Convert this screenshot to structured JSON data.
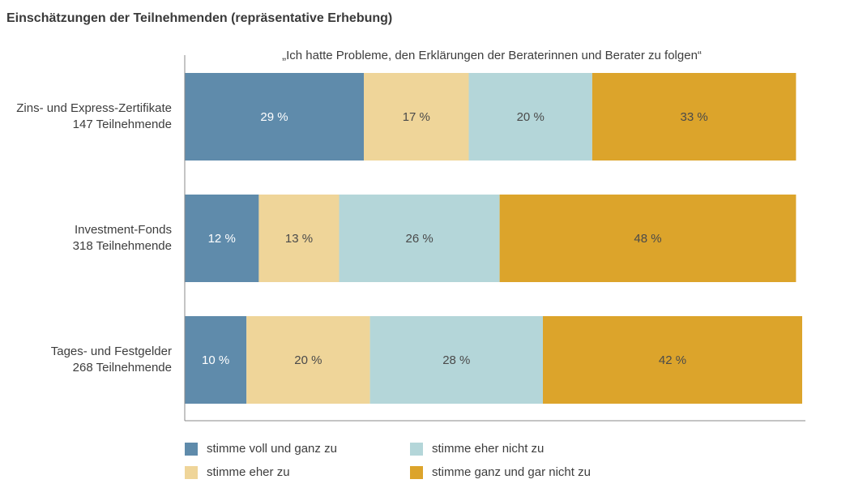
{
  "title": "Einschätzungen der Teilnehmenden (repräsentative Erhebung)",
  "chart_data": {
    "type": "bar",
    "orientation": "horizontal",
    "stacked": true,
    "subtitle": "„Ich hatte Probleme, den Erklärungen der Beraterinnen und Berater zu folgen“",
    "categories": [
      {
        "line1": "Zins- und Express-Zertifikate",
        "line2": "147 Teilnehmende"
      },
      {
        "line1": "Investment-Fonds",
        "line2": "318 Teilnehmende"
      },
      {
        "line1": "Tages- und Festgelder",
        "line2": "268 Teilnehmende"
      }
    ],
    "series": [
      {
        "name": "stimme voll und ganz zu",
        "color": "#5f8bab",
        "label_color": "#ffffff",
        "values": [
          29,
          12,
          10
        ],
        "labels": [
          "29 %",
          "12 %",
          "10 %"
        ]
      },
      {
        "name": "stimme eher zu",
        "color": "#efd599",
        "label_color": "#4a4a4a",
        "values": [
          17,
          13,
          20
        ],
        "labels": [
          "17 %",
          "13 %",
          "20 %"
        ]
      },
      {
        "name": "stimme eher nicht zu",
        "color": "#b4d6d9",
        "label_color": "#4a4a4a",
        "values": [
          20,
          26,
          28
        ],
        "labels": [
          "20 %",
          "26 %",
          "28 %"
        ]
      },
      {
        "name": "stimme ganz und gar nicht zu",
        "color": "#dca42b",
        "label_color": "#4a4a4a",
        "values": [
          33,
          48,
          42
        ],
        "labels": [
          "33 %",
          "48 %",
          "42 %"
        ]
      }
    ],
    "xlim": [
      0,
      100
    ],
    "unit": "%",
    "grid": false,
    "legend_position": "bottom"
  }
}
